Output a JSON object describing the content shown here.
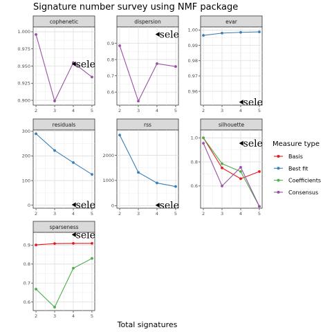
{
  "chart_data": {
    "type": "line",
    "title": "Signature number survey using NMF package",
    "xlabel": "Total signatures",
    "legend": {
      "title": "Measure type",
      "placement": "right",
      "entries": [
        {
          "name": "Basis",
          "color": "#E41A1C"
        },
        {
          "name": "Best fit",
          "color": "#377EB8"
        },
        {
          "name": "Coefficients",
          "color": "#4DAF4A"
        },
        {
          "name": "Consensus",
          "color": "#984EA3"
        }
      ]
    },
    "x": [
      2,
      3,
      4,
      5
    ],
    "annotation": {
      "text": "select",
      "marker": "triangle-left"
    },
    "grid": true,
    "panels": [
      {
        "name": "cophenetic",
        "ylim": [
          0.893,
          1.007
        ],
        "yticks": [
          0.9,
          0.925,
          0.95,
          0.975,
          1.0
        ],
        "ytick_labels": [
          "0.900",
          "0.925",
          "0.950",
          "0.975",
          "1.000"
        ],
        "annotation_at": {
          "x": 4.1,
          "y": 0.953
        },
        "series": [
          {
            "name": "Consensus",
            "values": [
              0.996,
              0.899,
              0.955,
              0.934
            ]
          }
        ]
      },
      {
        "name": "dispersion",
        "ylim": [
          0.52,
          1.0
        ],
        "yticks": [
          0.6,
          0.7,
          0.8,
          0.9
        ],
        "ytick_labels": [
          "0.6",
          "0.7",
          "0.8",
          "0.9"
        ],
        "annotation_at": {
          "x": 4.1,
          "y": 0.955
        },
        "series": [
          {
            "name": "Consensus",
            "values": [
              0.885,
              0.545,
              0.775,
              0.757
            ]
          }
        ]
      },
      {
        "name": "evar",
        "ylim": [
          0.951,
          1.002
        ],
        "yticks": [
          0.96,
          0.97,
          0.98,
          0.99,
          1.0
        ],
        "ytick_labels": [
          "0.96",
          "0.97",
          "0.98",
          "0.99",
          "1.00"
        ],
        "annotation_at": {
          "x": 4.1,
          "y": 0.953
        },
        "series": [
          {
            "name": "Best fit",
            "values": [
              0.9965,
              0.998,
              0.9985,
              0.9988
            ]
          }
        ]
      },
      {
        "name": "residuals",
        "ylim": [
          -12,
          305
        ],
        "yticks": [
          0,
          100,
          200,
          300
        ],
        "ytick_labels": [
          "0",
          "100",
          "200",
          "300"
        ],
        "annotation_at": {
          "x": 4.1,
          "y": 2
        },
        "series": [
          {
            "name": "Best fit",
            "values": [
              290,
              222,
              173,
              125
            ]
          }
        ]
      },
      {
        "name": "rss",
        "ylim": [
          -100,
          3000
        ],
        "yticks": [
          0,
          1000,
          2000
        ],
        "ytick_labels": [
          "0",
          "1000",
          "2000"
        ],
        "annotation_at": {
          "x": 4.1,
          "y": 20
        },
        "series": [
          {
            "name": "Best fit",
            "values": [
              2800,
              1320,
              900,
              760
            ]
          }
        ]
      },
      {
        "name": "silhouette",
        "ylim": [
          0.415,
          1.065
        ],
        "yticks": [
          0.6,
          0.8,
          1.0
        ],
        "ytick_labels": [
          "0.6",
          "0.8",
          "1.0"
        ],
        "annotation_at": {
          "x": 4.1,
          "y": 0.955
        },
        "series": [
          {
            "name": "Basis",
            "values": [
              1.0,
              0.75,
              0.66,
              0.72
            ]
          },
          {
            "name": "Coefficients",
            "values": [
              1.0,
              0.785,
              0.72,
              0.43
            ]
          },
          {
            "name": "Consensus",
            "values": [
              0.955,
              0.6,
              0.755,
              0.43
            ]
          }
        ]
      },
      {
        "name": "sparseness",
        "ylim": [
          0.555,
          0.967
        ],
        "yticks": [
          0.6,
          0.7,
          0.8,
          0.9
        ],
        "ytick_labels": [
          "0.6",
          "0.7",
          "0.8",
          "0.9"
        ],
        "annotation_at": {
          "x": 4.1,
          "y": 0.955
        },
        "series": [
          {
            "name": "Basis",
            "values": [
              0.901,
              0.908,
              0.909,
              0.909
            ]
          },
          {
            "name": "Coefficients",
            "values": [
              0.668,
              0.573,
              0.778,
              0.83
            ]
          }
        ]
      }
    ]
  }
}
